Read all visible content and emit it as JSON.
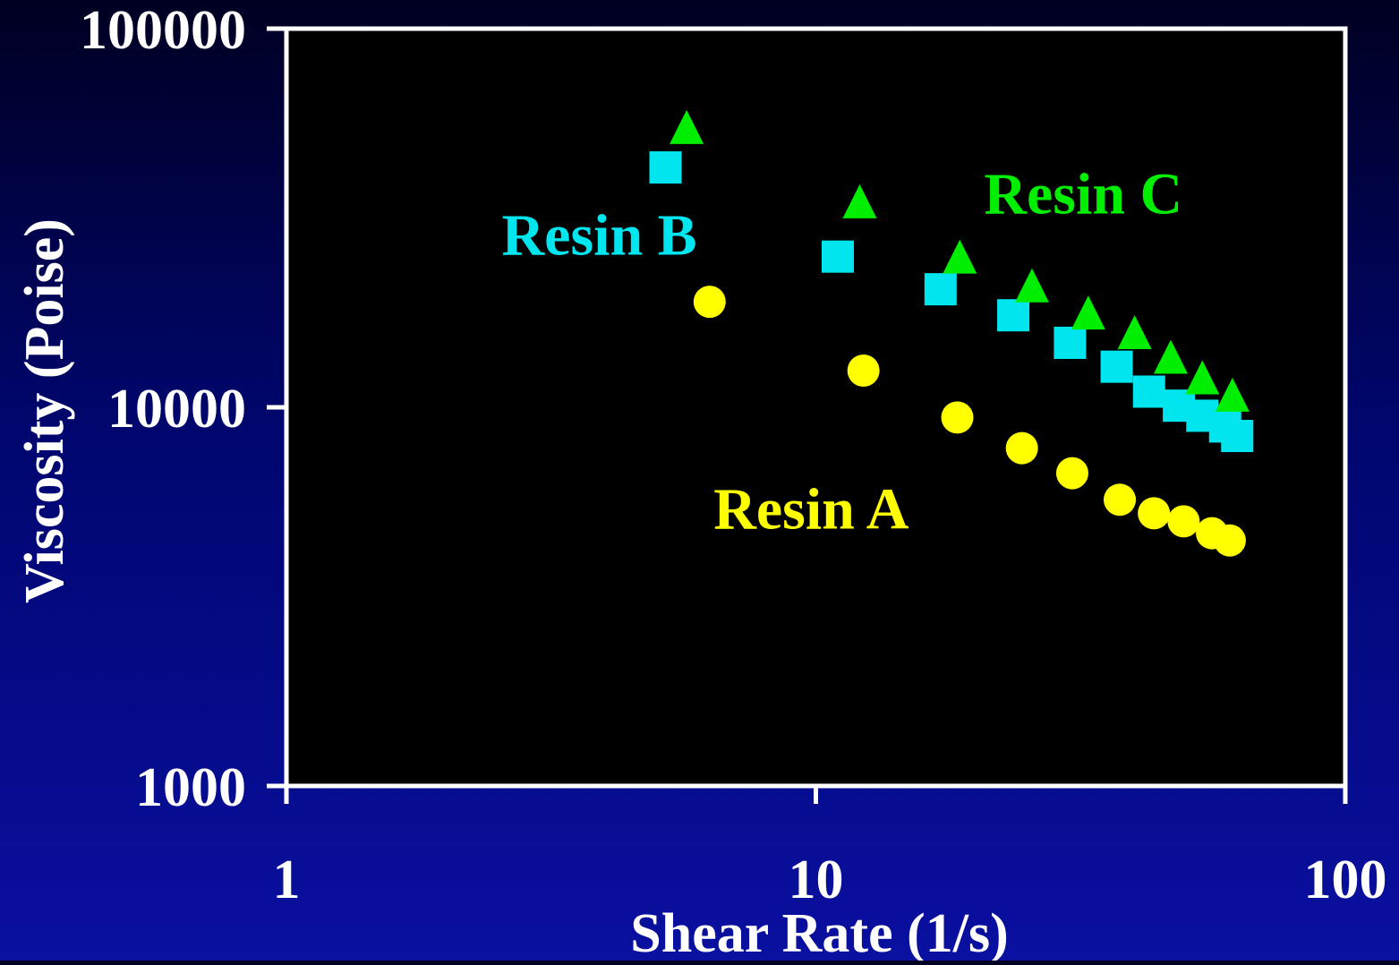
{
  "chart_data": {
    "type": "scatter",
    "title": "",
    "xlabel": "Shear Rate (1/s)",
    "ylabel": "Viscosity (Poise)",
    "xscale": "log",
    "yscale": "log",
    "xlim": [
      1,
      100
    ],
    "ylim": [
      1000,
      100000
    ],
    "x_ticks": [
      "1",
      "10",
      "100"
    ],
    "y_ticks": [
      "1000",
      "10000",
      "100000"
    ],
    "grid": false,
    "legend": "none (inline series labels)",
    "plot_background": "#000000",
    "axis_color": "#ffffff",
    "series": [
      {
        "name": "Resin A",
        "marker": "circle",
        "color": "#ffff00",
        "x": [
          6.3,
          12.3,
          18.5,
          24.5,
          30.5,
          37.5,
          43.5,
          49.5,
          56.0,
          60.5
        ],
        "y": [
          19000,
          12500,
          9400,
          7800,
          6700,
          5700,
          5250,
          5000,
          4650,
          4450
        ]
      },
      {
        "name": "Resin B",
        "marker": "square",
        "color": "#00e5ee",
        "x": [
          5.2,
          11.0,
          17.2,
          23.6,
          30.2,
          37.0,
          42.6,
          48.5,
          53.7,
          59.3,
          62.5
        ],
        "y": [
          43000,
          25000,
          20500,
          17500,
          14800,
          12800,
          11000,
          10100,
          9500,
          8900,
          8400
        ]
      },
      {
        "name": "Resin C",
        "marker": "triangle",
        "color": "#00ee00",
        "x": [
          5.7,
          12.1,
          18.7,
          25.6,
          32.7,
          40.0,
          46.8,
          53.7,
          61.2
        ],
        "y": [
          55000,
          35000,
          25000,
          21000,
          17800,
          15800,
          13600,
          12000,
          10800
        ]
      }
    ]
  }
}
